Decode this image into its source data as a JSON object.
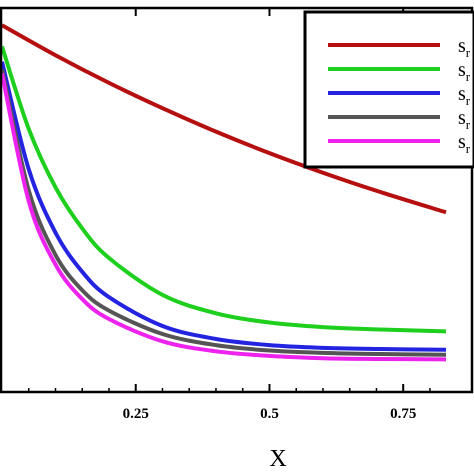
{
  "chart_data": {
    "type": "line",
    "xlabel": "X",
    "xlim": [
      0,
      0.83
    ],
    "ylim": [
      0,
      1
    ],
    "x_ticks": [
      "0.25",
      "0.5",
      "0.75"
    ],
    "x_tick_values": [
      0.25,
      0.5,
      0.75
    ],
    "legend_position": "top-right",
    "series": [
      {
        "name": "s",
        "sub": "r",
        "color": "#b50f0f",
        "x": [
          0,
          0.1,
          0.2,
          0.3,
          0.4,
          0.5,
          0.6,
          0.7,
          0.83
        ],
        "y": [
          0.955,
          0.877,
          0.805,
          0.739,
          0.678,
          0.622,
          0.571,
          0.524,
          0.468
        ]
      },
      {
        "name": "s",
        "sub": "r",
        "color": "#1ecf1e",
        "x": [
          0,
          0.05,
          0.1,
          0.15,
          0.2,
          0.3,
          0.4,
          0.5,
          0.6,
          0.7,
          0.83
        ],
        "y": [
          0.9,
          0.685,
          0.533,
          0.426,
          0.349,
          0.253,
          0.205,
          0.181,
          0.169,
          0.163,
          0.158
        ]
      },
      {
        "name": "s",
        "sub": "r",
        "color": "#2323e0",
        "x": [
          0,
          0.05,
          0.1,
          0.15,
          0.2,
          0.3,
          0.4,
          0.5,
          0.6,
          0.7,
          0.83
        ],
        "y": [
          0.86,
          0.58,
          0.415,
          0.313,
          0.247,
          0.172,
          0.138,
          0.122,
          0.115,
          0.112,
          0.11
        ]
      },
      {
        "name": "s",
        "sub": "r",
        "color": "#555555",
        "x": [
          0,
          0.05,
          0.1,
          0.15,
          0.2,
          0.3,
          0.4,
          0.5,
          0.6,
          0.7,
          0.83
        ],
        "y": [
          0.84,
          0.525,
          0.357,
          0.265,
          0.212,
          0.151,
          0.122,
          0.108,
          0.102,
          0.099,
          0.097
        ]
      },
      {
        "name": "s",
        "sub": "r",
        "color": "#ee22ee",
        "x": [
          0,
          0.05,
          0.1,
          0.15,
          0.2,
          0.3,
          0.4,
          0.5,
          0.6,
          0.7,
          0.83
        ],
        "y": [
          0.83,
          0.497,
          0.332,
          0.242,
          0.19,
          0.132,
          0.106,
          0.094,
          0.088,
          0.086,
          0.085
        ]
      }
    ]
  }
}
